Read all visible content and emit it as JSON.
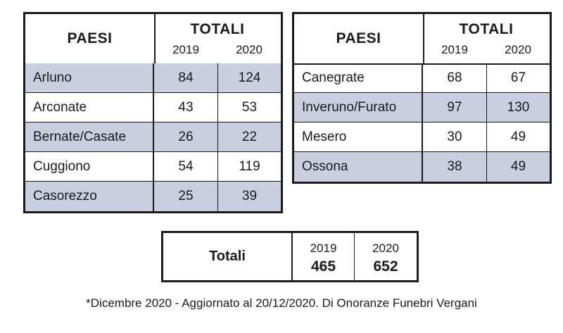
{
  "left_table": {
    "header_paesi": "PAESI",
    "header_totali": "TOTALI",
    "year1": "2019",
    "year2": "2020",
    "rows": [
      {
        "name": "Arluno",
        "v2019": "84",
        "v2020": "124"
      },
      {
        "name": "Arconate",
        "v2019": "43",
        "v2020": "53"
      },
      {
        "name": "Bernate/Casate",
        "v2019": "26",
        "v2020": "22"
      },
      {
        "name": "Cuggiono",
        "v2019": "54",
        "v2020": "119"
      },
      {
        "name": "Casorezzo",
        "v2019": "25",
        "v2020": "39"
      }
    ]
  },
  "right_table": {
    "header_paesi": "PAESI",
    "header_totali": "TOTALI",
    "year1": "2019",
    "year2": "2020",
    "rows": [
      {
        "name": "Canegrate",
        "v2019": "68",
        "v2020": "67"
      },
      {
        "name": "Inveruno/Furato",
        "v2019": "97",
        "v2020": "130"
      },
      {
        "name": "Mesero",
        "v2019": "30",
        "v2020": "49"
      },
      {
        "name": "Ossona",
        "v2019": "38",
        "v2020": "49"
      }
    ]
  },
  "totals": {
    "label": "Totali",
    "year1": "2019",
    "value1": "465",
    "year2": "2020",
    "value2": "652"
  },
  "footnote": "*Dicembre 2020 - Aggiornato al 20/12/2020. Di Onoranze Funebri Vergani",
  "colors": {
    "shaded_row": "#c9cfdf",
    "border": "#1a1a1a"
  }
}
